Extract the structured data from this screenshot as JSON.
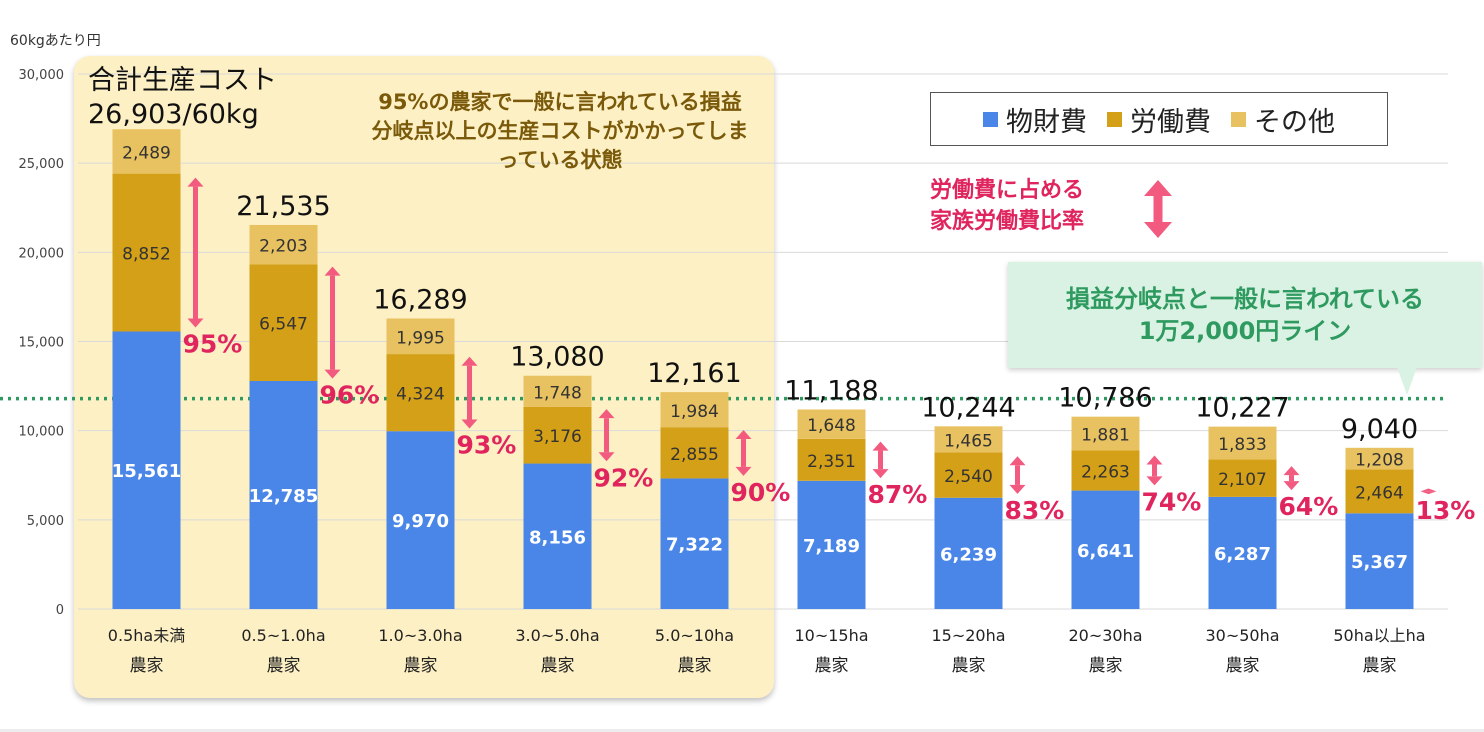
{
  "chart_data": {
    "type": "bar",
    "stacked": true,
    "ylabel": "60kgあたり円",
    "ylim": [
      0,
      30000
    ],
    "yticks": [
      "0",
      "5,000",
      "10,000",
      "15,000",
      "20,000",
      "25,000",
      "30,000"
    ],
    "grid": true,
    "categories": [
      [
        "0.5ha未満",
        "農家"
      ],
      [
        "0.5~1.0ha",
        "農家"
      ],
      [
        "1.0~3.0ha",
        "農家"
      ],
      [
        "3.0~5.0ha",
        "農家"
      ],
      [
        "5.0~10ha",
        "農家"
      ],
      [
        "10~15ha",
        "農家"
      ],
      [
        "15~20ha",
        "農家"
      ],
      [
        "20~30ha",
        "農家"
      ],
      [
        "30~50ha",
        "農家"
      ],
      [
        "50ha以上ha",
        "農家"
      ]
    ],
    "series": [
      {
        "name": "物財費",
        "color": "#4a86e8",
        "values": [
          15561,
          12785,
          9970,
          8156,
          7322,
          7189,
          6239,
          6641,
          6287,
          5367
        ]
      },
      {
        "name": "労働費",
        "color": "#d4a017",
        "values": [
          8852,
          6547,
          4324,
          3176,
          2855,
          2351,
          2540,
          2263,
          2107,
          2464
        ]
      },
      {
        "name": "その他",
        "color": "#e8c160",
        "values": [
          2489,
          2203,
          1995,
          1748,
          1984,
          1648,
          1465,
          1881,
          1833,
          1208
        ]
      }
    ],
    "value_labels": [
      [
        "15,561",
        "8,852",
        "2,489"
      ],
      [
        "12,785",
        "6,547",
        "2,203"
      ],
      [
        "9,970",
        "4,324",
        "1,995"
      ],
      [
        "8,156",
        "3,176",
        "1,748"
      ],
      [
        "7,322",
        "2,855",
        "1,984"
      ],
      [
        "7,189",
        "2,351",
        "1,648"
      ],
      [
        "6,239",
        "2,540",
        "1,465"
      ],
      [
        "6,641",
        "2,263",
        "1,881"
      ],
      [
        "6,287",
        "2,107",
        "1,833"
      ],
      [
        "5,367",
        "2,464",
        "1,208"
      ]
    ],
    "total_labels": [
      "",
      "21,535",
      "16,289",
      "13,080",
      "12,161",
      "11,188",
      "10,244",
      "10,786",
      "10,227",
      "9,040"
    ],
    "family_labor_ratio_pct": [
      95,
      96,
      93,
      92,
      90,
      87,
      83,
      74,
      64,
      13
    ],
    "family_labor_ratio_labels": [
      "95%",
      "96%",
      "93%",
      "92%",
      "90%",
      "87%",
      "83%",
      "74%",
      "64%",
      "13%"
    ],
    "reference_line": {
      "value": 11800,
      "color": "#2e9a5f",
      "style": "dotted"
    },
    "arrow_color": "#f25a7f",
    "percent_color": "#e0245e"
  },
  "annotations": {
    "total_title_line1": "合計生産コスト",
    "total_title_line2": "26,903/60kg",
    "panel_note": "95%の農家で一般に言われている損益分岐点以上の生産コストがかかってしまっている状態",
    "family_note_line1": "労働費に占める",
    "family_note_line2": "家族労働費比率",
    "callout_line1": "損益分岐点と一般に言われている",
    "callout_line2": "1万2,000円ライン"
  },
  "legend": {
    "items": [
      {
        "label": "物財費",
        "color": "#4a86e8"
      },
      {
        "label": "労働費",
        "color": "#d4a017"
      },
      {
        "label": "その他",
        "color": "#e8c160"
      }
    ]
  }
}
